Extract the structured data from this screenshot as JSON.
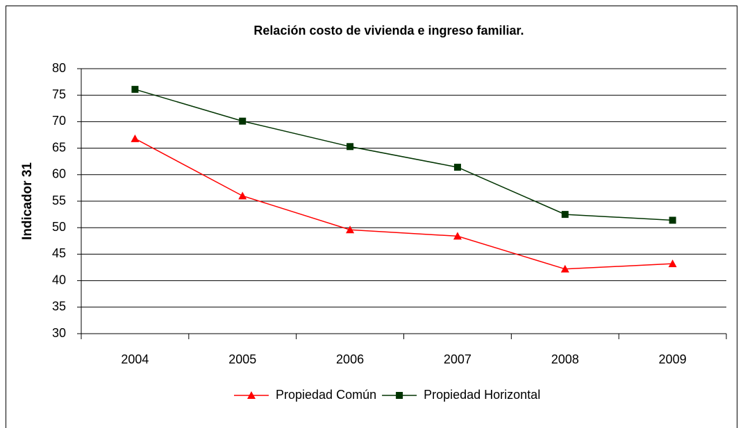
{
  "chart_data": {
    "type": "line",
    "title": "Relación costo de vivienda e ingreso familiar.",
    "y_label": "Indicador 31",
    "categories": [
      "2004",
      "2005",
      "2006",
      "2007",
      "2008",
      "2009"
    ],
    "series": [
      {
        "name": "Propiedad Común",
        "color": "#ff0000",
        "marker": "triangle",
        "values": [
          66.8,
          56.0,
          49.6,
          48.4,
          42.2,
          43.2
        ]
      },
      {
        "name": "Propiedad Horizontal",
        "color": "#003300",
        "marker": "square",
        "values": [
          76.1,
          70.1,
          65.3,
          61.4,
          52.5,
          51.4
        ]
      }
    ],
    "ylim": [
      30,
      80
    ],
    "yticks": [
      30,
      35,
      40,
      45,
      50,
      55,
      60,
      65,
      70,
      75,
      80
    ],
    "grid": true
  }
}
